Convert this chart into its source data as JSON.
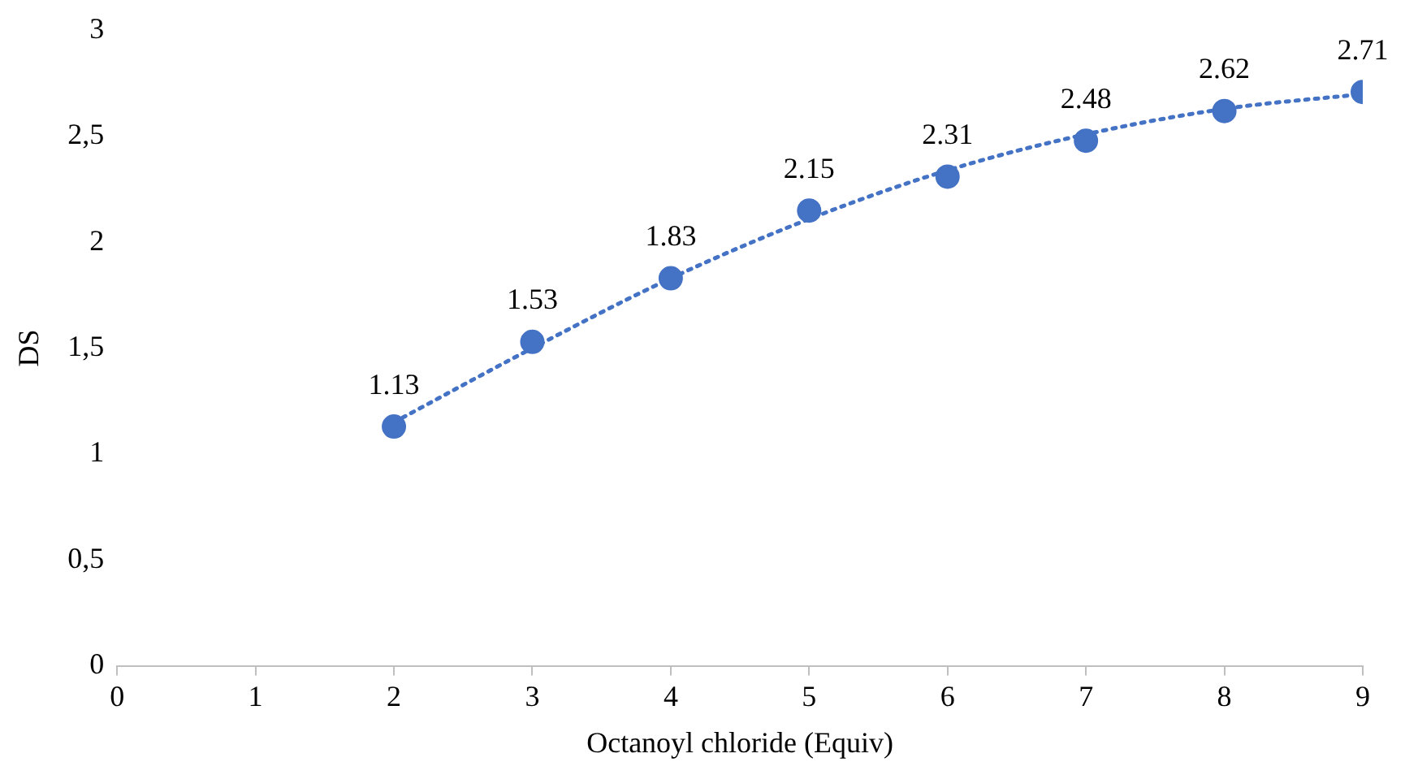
{
  "chart_data": {
    "type": "scatter",
    "xlabel": "Octanoyl chloride (Equiv)",
    "ylabel": "DS",
    "x": [
      2,
      3,
      4,
      5,
      6,
      7,
      8,
      9
    ],
    "series": [
      {
        "color": "#4472c4",
        "values": [
          1.13,
          1.53,
          1.83,
          2.15,
          2.31,
          2.48,
          2.62,
          2.71
        ],
        "value_labels": [
          "1.13",
          "1.53",
          "1.83",
          "2.15",
          "2.31",
          "2.48",
          "2.62",
          "2.71"
        ]
      },
      {
        "type": "line",
        "color": "#4472c4",
        "line_style": "dotted",
        "marker": "none",
        "x": [
          2,
          3,
          4,
          5,
          6,
          7,
          8,
          9
        ],
        "values": [
          1.15,
          1.5,
          1.83,
          2.11,
          2.34,
          2.51,
          2.63,
          2.7
        ]
      }
    ],
    "marker": "circle",
    "xlim": [
      0,
      9
    ],
    "xticks": [
      0,
      1,
      2,
      3,
      4,
      5,
      6,
      7,
      8,
      9
    ],
    "ylim": [
      0,
      3
    ],
    "yticks": [
      0,
      {
        "value": 0.5,
        "label": "0,5"
      },
      1,
      {
        "value": 1.5,
        "label": "1,5"
      },
      2,
      {
        "value": 2.5,
        "label": "2,5"
      },
      3
    ],
    "grid": false,
    "legend": false
  }
}
